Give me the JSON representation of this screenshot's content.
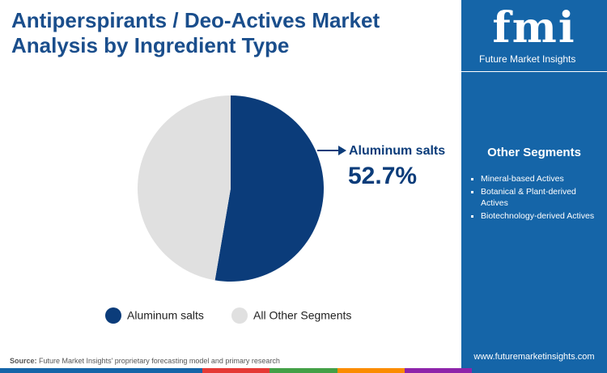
{
  "chart_data": {
    "type": "pie",
    "title": "Antiperspirants / Deo-Actives Market Analysis by Ingredient Type",
    "categories": [
      "Aluminum salts",
      "All Other Segments"
    ],
    "values": [
      52.7,
      47.3
    ],
    "value_labels": [
      "52.7%",
      null
    ],
    "colors": [
      "#0b3c7a",
      "#e0e0e0"
    ],
    "legend": "bottom"
  },
  "logo": {
    "text": "fmi",
    "tagline": "Future Market Insights"
  },
  "other_segments": {
    "title": "Other Segments",
    "items": [
      "Mineral-based Actives",
      "Botanical & Plant-derived Actives",
      "Biotechnology-derived Actives"
    ]
  },
  "source": {
    "label": "Source:",
    "text": "Future Market Insights' proprietary forecasting model and primary research"
  },
  "website": "www.futuremarketinsights.com"
}
